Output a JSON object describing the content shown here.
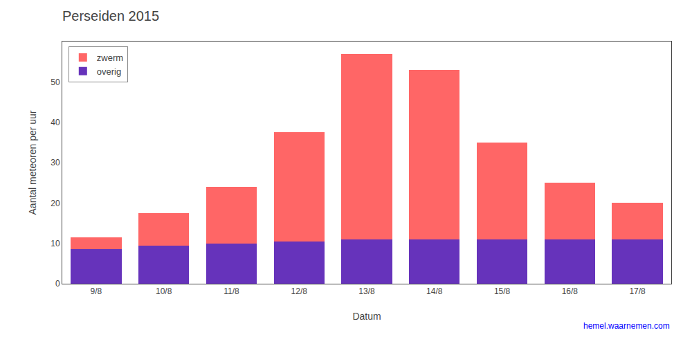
{
  "chart_data": {
    "type": "bar",
    "title": "Perseiden 2015",
    "xlabel": "Datum",
    "ylabel": "Aantal meteoren per uur",
    "categories": [
      "9/8",
      "10/8",
      "11/8",
      "12/8",
      "13/8",
      "14/8",
      "15/8",
      "16/8",
      "17/8"
    ],
    "series": [
      {
        "name": "overig",
        "color": "#6633BB",
        "values": [
          8.5,
          9.5,
          10,
          10.5,
          11,
          11,
          11,
          11,
          11
        ]
      },
      {
        "name": "zwerm",
        "color": "#FF6666",
        "values": [
          3,
          8,
          14,
          27,
          46,
          42,
          24,
          14,
          9
        ]
      }
    ],
    "stacked": true,
    "ylim": [
      0,
      60
    ],
    "yticks": [
      0,
      10,
      20,
      30,
      40,
      50
    ],
    "grid": false,
    "legend": "upper left",
    "annotations": [
      "hemel.waarnemen.com"
    ]
  }
}
